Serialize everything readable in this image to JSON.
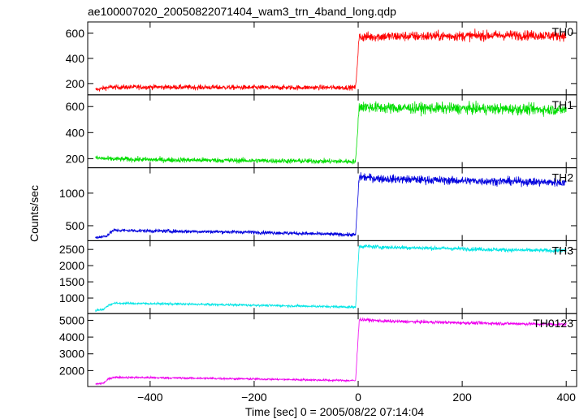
{
  "chart_data": {
    "type": "line",
    "title": "ae100007020_20050822071404_wam3_trn_4band_long.qdp",
    "xlabel": "Time [sec] 0 = 2005/08/22 07:14:04",
    "ylabel": "Counts/sec",
    "xlim": [
      -520,
      420
    ],
    "x_ticks": [
      -400,
      -200,
      0,
      200,
      400
    ],
    "panels": [
      {
        "name": "TH0",
        "color": "#ff0000",
        "ylim": [
          110,
          690
        ],
        "y_ticks": [
          200,
          400,
          600
        ],
        "baseline_knots": [
          [
            -505,
            150
          ],
          [
            -480,
            170
          ],
          [
            -400,
            172
          ],
          [
            -200,
            168
          ],
          [
            -5,
            168
          ],
          [
            2,
            570
          ],
          [
            50,
            575
          ],
          [
            200,
            578
          ],
          [
            300,
            585
          ],
          [
            400,
            580
          ]
        ],
        "noise_before": 14,
        "noise_after": 28
      },
      {
        "name": "TH1",
        "color": "#00dd00",
        "ylim": [
          130,
          690
        ],
        "y_ticks": [
          200,
          400,
          600
        ],
        "baseline_knots": [
          [
            -505,
            205
          ],
          [
            -480,
            198
          ],
          [
            -400,
            192
          ],
          [
            -200,
            185
          ],
          [
            -5,
            178
          ],
          [
            2,
            600
          ],
          [
            50,
            590
          ],
          [
            200,
            585
          ],
          [
            300,
            580
          ],
          [
            400,
            575
          ]
        ],
        "noise_before": 14,
        "noise_after": 30
      },
      {
        "name": "TH2",
        "color": "#0000dd",
        "ylim": [
          270,
          1390
        ],
        "y_ticks": [
          500,
          1000
        ],
        "baseline_knots": [
          [
            -505,
            320
          ],
          [
            -485,
            340
          ],
          [
            -470,
            430
          ],
          [
            -400,
            420
          ],
          [
            -200,
            400
          ],
          [
            -5,
            360
          ],
          [
            2,
            1250
          ],
          [
            50,
            1220
          ],
          [
            200,
            1190
          ],
          [
            300,
            1180
          ],
          [
            400,
            1160
          ]
        ],
        "noise_before": 20,
        "noise_after": 45
      },
      {
        "name": "TH3",
        "color": "#00e5e5",
        "ylim": [
          520,
          2770
        ],
        "y_ticks": [
          1000,
          1500,
          2000,
          2500
        ],
        "baseline_knots": [
          [
            -505,
            620
          ],
          [
            -490,
            650
          ],
          [
            -480,
            780
          ],
          [
            -470,
            840
          ],
          [
            -400,
            830
          ],
          [
            -200,
            780
          ],
          [
            -5,
            720
          ],
          [
            2,
            2600
          ],
          [
            50,
            2570
          ],
          [
            200,
            2520
          ],
          [
            300,
            2480
          ],
          [
            400,
            2460
          ]
        ],
        "noise_before": 25,
        "noise_after": 45
      },
      {
        "name": "TH0123",
        "color": "#ee00ee",
        "ylim": [
          1050,
          5400
        ],
        "y_ticks": [
          2000,
          3000,
          4000,
          5000
        ],
        "baseline_knots": [
          [
            -505,
            1200
          ],
          [
            -490,
            1250
          ],
          [
            -480,
            1500
          ],
          [
            -470,
            1600
          ],
          [
            -400,
            1580
          ],
          [
            -200,
            1500
          ],
          [
            -5,
            1400
          ],
          [
            2,
            5050
          ],
          [
            50,
            4950
          ],
          [
            200,
            4850
          ],
          [
            300,
            4800
          ],
          [
            400,
            4750
          ]
        ],
        "noise_before": 45,
        "noise_after": 70
      }
    ]
  }
}
